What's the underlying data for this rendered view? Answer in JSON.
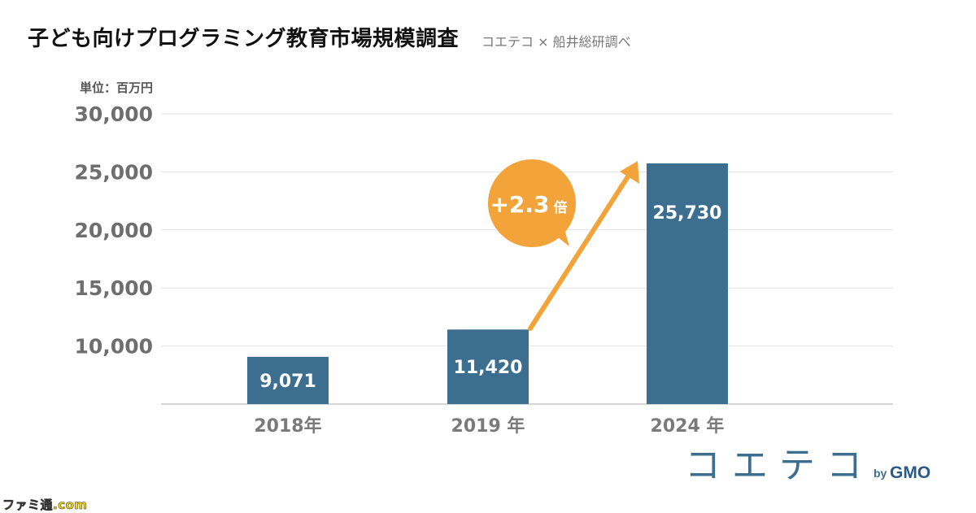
{
  "header": {
    "title": "子ども向けプログラミング教育市場規模調査",
    "source": "コエテコ × 船井総研調べ"
  },
  "unit_label": "単位：百万円",
  "chart_data": {
    "type": "bar",
    "categories": [
      "2018年",
      "2019 年",
      "2024 年"
    ],
    "values": [
      9071,
      11420,
      25730
    ],
    "value_labels": [
      "9,071",
      "11,420",
      "25,730"
    ],
    "y_ticks": [
      10000,
      15000,
      20000,
      25000,
      30000
    ],
    "y_tick_labels": [
      "10,000",
      "15,000",
      "20,000",
      "25,000",
      "30,000"
    ],
    "ylim": [
      5000,
      30000
    ],
    "grid": true,
    "bar_color": "#3c6f8f",
    "title": "",
    "xlabel": "",
    "ylabel": "",
    "annotation": {
      "text_value": "+2.3",
      "text_suffix": "倍",
      "color": "#f2a43a",
      "from_category": "2019 年",
      "to_category": "2024 年"
    }
  },
  "logo": {
    "text": "コエテコ",
    "by": "by",
    "gmo": "GMO"
  },
  "watermark": "ファミ通.com"
}
